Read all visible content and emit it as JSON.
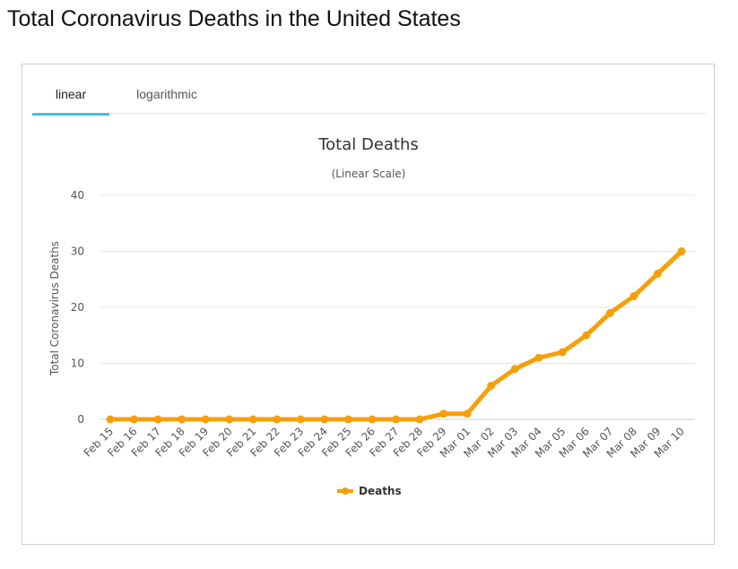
{
  "page": {
    "title": "Total Coronavirus Deaths in the United States"
  },
  "tabs": [
    {
      "label": "linear",
      "active": true
    },
    {
      "label": "logarithmic",
      "active": false
    }
  ],
  "colors": {
    "series": "#f5a00a",
    "tab_accent": "#3ec1e5",
    "grid": "#e6e6e6"
  },
  "chart_data": {
    "type": "line",
    "title": "Total Deaths",
    "subtitle": "(Linear Scale)",
    "ylabel": "Total Coronavirus Deaths",
    "xlabel": "",
    "ylim": [
      0,
      40
    ],
    "yticks": [
      0,
      10,
      20,
      30,
      40
    ],
    "grid": true,
    "legend": "bottom-center",
    "categories": [
      "Feb 15",
      "Feb 16",
      "Feb 17",
      "Feb 18",
      "Feb 19",
      "Feb 20",
      "Feb 21",
      "Feb 22",
      "Feb 23",
      "Feb 24",
      "Feb 25",
      "Feb 26",
      "Feb 27",
      "Feb 28",
      "Feb 29",
      "Mar 01",
      "Mar 02",
      "Mar 03",
      "Mar 04",
      "Mar 05",
      "Mar 06",
      "Mar 07",
      "Mar 08",
      "Mar 09",
      "Mar 10"
    ],
    "series": [
      {
        "name": "Deaths",
        "values": [
          0,
          0,
          0,
          0,
          0,
          0,
          0,
          0,
          0,
          0,
          0,
          0,
          0,
          0,
          1,
          1,
          6,
          9,
          11,
          12,
          15,
          19,
          22,
          26,
          30
        ]
      }
    ]
  }
}
